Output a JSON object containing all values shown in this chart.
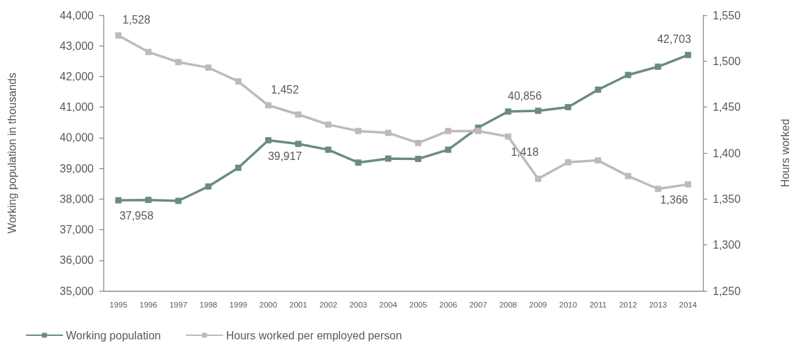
{
  "chart_data": {
    "type": "line",
    "categories": [
      "1995",
      "1996",
      "1997",
      "1998",
      "1999",
      "2000",
      "2001",
      "2002",
      "2003",
      "2004",
      "2005",
      "2006",
      "2007",
      "2008",
      "2009",
      "2010",
      "2011",
      "2012",
      "2013",
      "2014"
    ],
    "ylabel": "Working population in thousands",
    "y2label": "Hours worked",
    "ylim": [
      35000,
      44000
    ],
    "yticks": [
      {
        "value": 35000,
        "label": "35,000"
      },
      {
        "value": 36000,
        "label": "36,000"
      },
      {
        "value": 37000,
        "label": "37,000"
      },
      {
        "value": 38000,
        "label": "38,000"
      },
      {
        "value": 39000,
        "label": "39,000"
      },
      {
        "value": 40000,
        "label": "40,000"
      },
      {
        "value": 41000,
        "label": "41,000"
      },
      {
        "value": 42000,
        "label": "42,000"
      },
      {
        "value": 43000,
        "label": "43,000"
      },
      {
        "value": 44000,
        "label": "44,000"
      }
    ],
    "y2lim": [
      1250,
      1550
    ],
    "y2ticks": [
      {
        "value": 1250,
        "label": "1,250"
      },
      {
        "value": 1300,
        "label": "1,300"
      },
      {
        "value": 1350,
        "label": "1,350"
      },
      {
        "value": 1400,
        "label": "1,400"
      },
      {
        "value": 1450,
        "label": "1,450"
      },
      {
        "value": 1500,
        "label": "1,500"
      },
      {
        "value": 1550,
        "label": "1,550"
      }
    ],
    "series": [
      {
        "name": "Working population",
        "color": "#6b8c7d",
        "values": [
          37958,
          37970,
          37940,
          38410,
          39020,
          39917,
          39800,
          39610,
          39190,
          39320,
          39310,
          39610,
          40330,
          40856,
          40880,
          41000,
          41570,
          42050,
          42320,
          42703
        ],
        "value_labels": [
          "37,958",
          null,
          null,
          null,
          null,
          "39,917",
          null,
          null,
          null,
          null,
          null,
          null,
          null,
          "40,856",
          null,
          null,
          null,
          null,
          null,
          "42,703"
        ]
      },
      {
        "name": "Hours worked per employed person",
        "color": "#c0bab5",
        "axis": "y2",
        "values": [
          1528,
          1510,
          1499,
          1493,
          1478,
          1452,
          1442,
          1431,
          1424,
          1422,
          1411,
          1424,
          1424,
          1418,
          1372,
          1390,
          1392,
          1375,
          1361,
          1366
        ],
        "value_labels": [
          "1,528",
          null,
          null,
          null,
          null,
          "1,452",
          null,
          null,
          null,
          null,
          null,
          null,
          null,
          "1,418",
          null,
          null,
          null,
          null,
          null,
          "1,366"
        ]
      }
    ],
    "legend": "bottom left",
    "marker": "square",
    "line_style": "solid"
  }
}
